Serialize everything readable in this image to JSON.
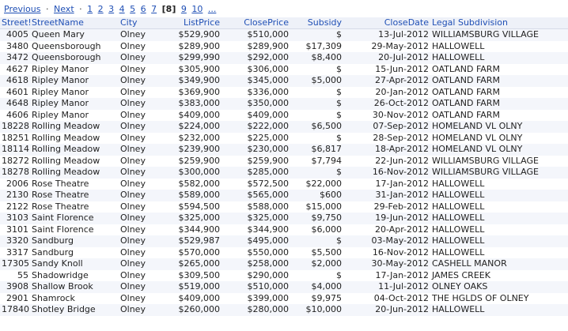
{
  "pager": {
    "previous": "Previous",
    "next": "Next",
    "pages": [
      "1",
      "2",
      "3",
      "4",
      "5",
      "6",
      "7"
    ],
    "current": "[8]",
    "after": [
      "9",
      "10",
      "..."
    ]
  },
  "table": {
    "headers": [
      "Street!",
      "StreetName",
      "City",
      "ListPrice",
      "ClosePrice",
      "Subsidy",
      "CloseDate",
      "Legal Subdivision"
    ],
    "rows": [
      [
        "4005",
        "Queen Mary",
        "Olney",
        "$529,900",
        "$510,000",
        "$",
        "13-Jul-2012",
        "WILLIAMSBURG VILLAGE"
      ],
      [
        "3480",
        "Queensborough",
        "Olney",
        "$289,900",
        "$289,900",
        "$17,309",
        "29-May-2012",
        "HALLOWELL"
      ],
      [
        "3472",
        "Queensborough",
        "Olney",
        "$299,990",
        "$292,000",
        "$8,400",
        "20-Jul-2012",
        "HALLOWELL"
      ],
      [
        "4627",
        "Ripley Manor",
        "Olney",
        "$305,900",
        "$306,000",
        "$",
        "15-Jun-2012",
        "OATLAND FARM"
      ],
      [
        "4618",
        "Ripley Manor",
        "Olney",
        "$349,900",
        "$345,000",
        "$5,000",
        "27-Apr-2012",
        "OATLAND FARM"
      ],
      [
        "4601",
        "Ripley Manor",
        "Olney",
        "$369,900",
        "$336,000",
        "$",
        "20-Jan-2012",
        "OATLAND FARM"
      ],
      [
        "4648",
        "Ripley Manor",
        "Olney",
        "$383,000",
        "$350,000",
        "$",
        "26-Oct-2012",
        "OATLAND FARM"
      ],
      [
        "4606",
        "Ripley Manor",
        "Olney",
        "$409,000",
        "$409,000",
        "$",
        "30-Nov-2012",
        "OATLAND FARM"
      ],
      [
        "18228",
        "Rolling Meadow",
        "Olney",
        "$224,000",
        "$222,000",
        "$6,500",
        "07-Sep-2012",
        "HOMELAND VL OLNY"
      ],
      [
        "18251",
        "Rolling Meadow",
        "Olney",
        "$232,000",
        "$225,000",
        "$",
        "28-Sep-2012",
        "HOMELAND VL OLNY"
      ],
      [
        "18114",
        "Rolling Meadow",
        "Olney",
        "$239,900",
        "$230,000",
        "$6,817",
        "18-Apr-2012",
        "HOMELAND VL OLNY"
      ],
      [
        "18272",
        "Rolling Meadow",
        "Olney",
        "$259,900",
        "$259,900",
        "$7,794",
        "22-Jun-2012",
        "WILLIAMSBURG VILLAGE"
      ],
      [
        "18278",
        "Rolling Meadow",
        "Olney",
        "$300,000",
        "$285,000",
        "$",
        "16-Nov-2012",
        "WILLIAMSBURG VILLAGE"
      ],
      [
        "2006",
        "Rose Theatre",
        "Olney",
        "$582,000",
        "$572,500",
        "$22,000",
        "17-Jan-2012",
        "HALLOWELL"
      ],
      [
        "2130",
        "Rose Theatre",
        "Olney",
        "$589,000",
        "$565,000",
        "$600",
        "31-Jan-2012",
        "HALLOWELL"
      ],
      [
        "2122",
        "Rose Theatre",
        "Olney",
        "$594,500",
        "$588,000",
        "$15,000",
        "29-Feb-2012",
        "HALLOWELL"
      ],
      [
        "3103",
        "Saint Florence",
        "Olney",
        "$325,000",
        "$325,000",
        "$9,750",
        "19-Jun-2012",
        "HALLOWELL"
      ],
      [
        "3101",
        "Saint Florence",
        "Olney",
        "$344,900",
        "$344,900",
        "$6,000",
        "20-Apr-2012",
        "HALLOWELL"
      ],
      [
        "3320",
        "Sandburg",
        "Olney",
        "$529,987",
        "$495,000",
        "$",
        "03-May-2012",
        "HALLOWELL"
      ],
      [
        "3317",
        "Sandburg",
        "Olney",
        "$570,000",
        "$550,000",
        "$5,500",
        "16-Nov-2012",
        "HALLOWELL"
      ],
      [
        "17305",
        "Sandy Knoll",
        "Olney",
        "$265,000",
        "$258,000",
        "$2,000",
        "30-May-2012",
        "CASHELL MANOR"
      ],
      [
        "55",
        "Shadowridge",
        "Olney",
        "$309,500",
        "$290,000",
        "$",
        "17-Jan-2012",
        "JAMES CREEK"
      ],
      [
        "3908",
        "Shallow Brook",
        "Olney",
        "$519,000",
        "$510,000",
        "$4,000",
        "11-Jul-2012",
        "OLNEY OAKS"
      ],
      [
        "2901",
        "Shamrock",
        "Olney",
        "$409,000",
        "$399,000",
        "$9,975",
        "04-Oct-2012",
        "THE HGLDS OF OLNEY"
      ],
      [
        "17840",
        "Shotley Bridge",
        "Olney",
        "$260,000",
        "$280,000",
        "$10,000",
        "20-Jun-2012",
        "HALLOWELL"
      ]
    ]
  }
}
